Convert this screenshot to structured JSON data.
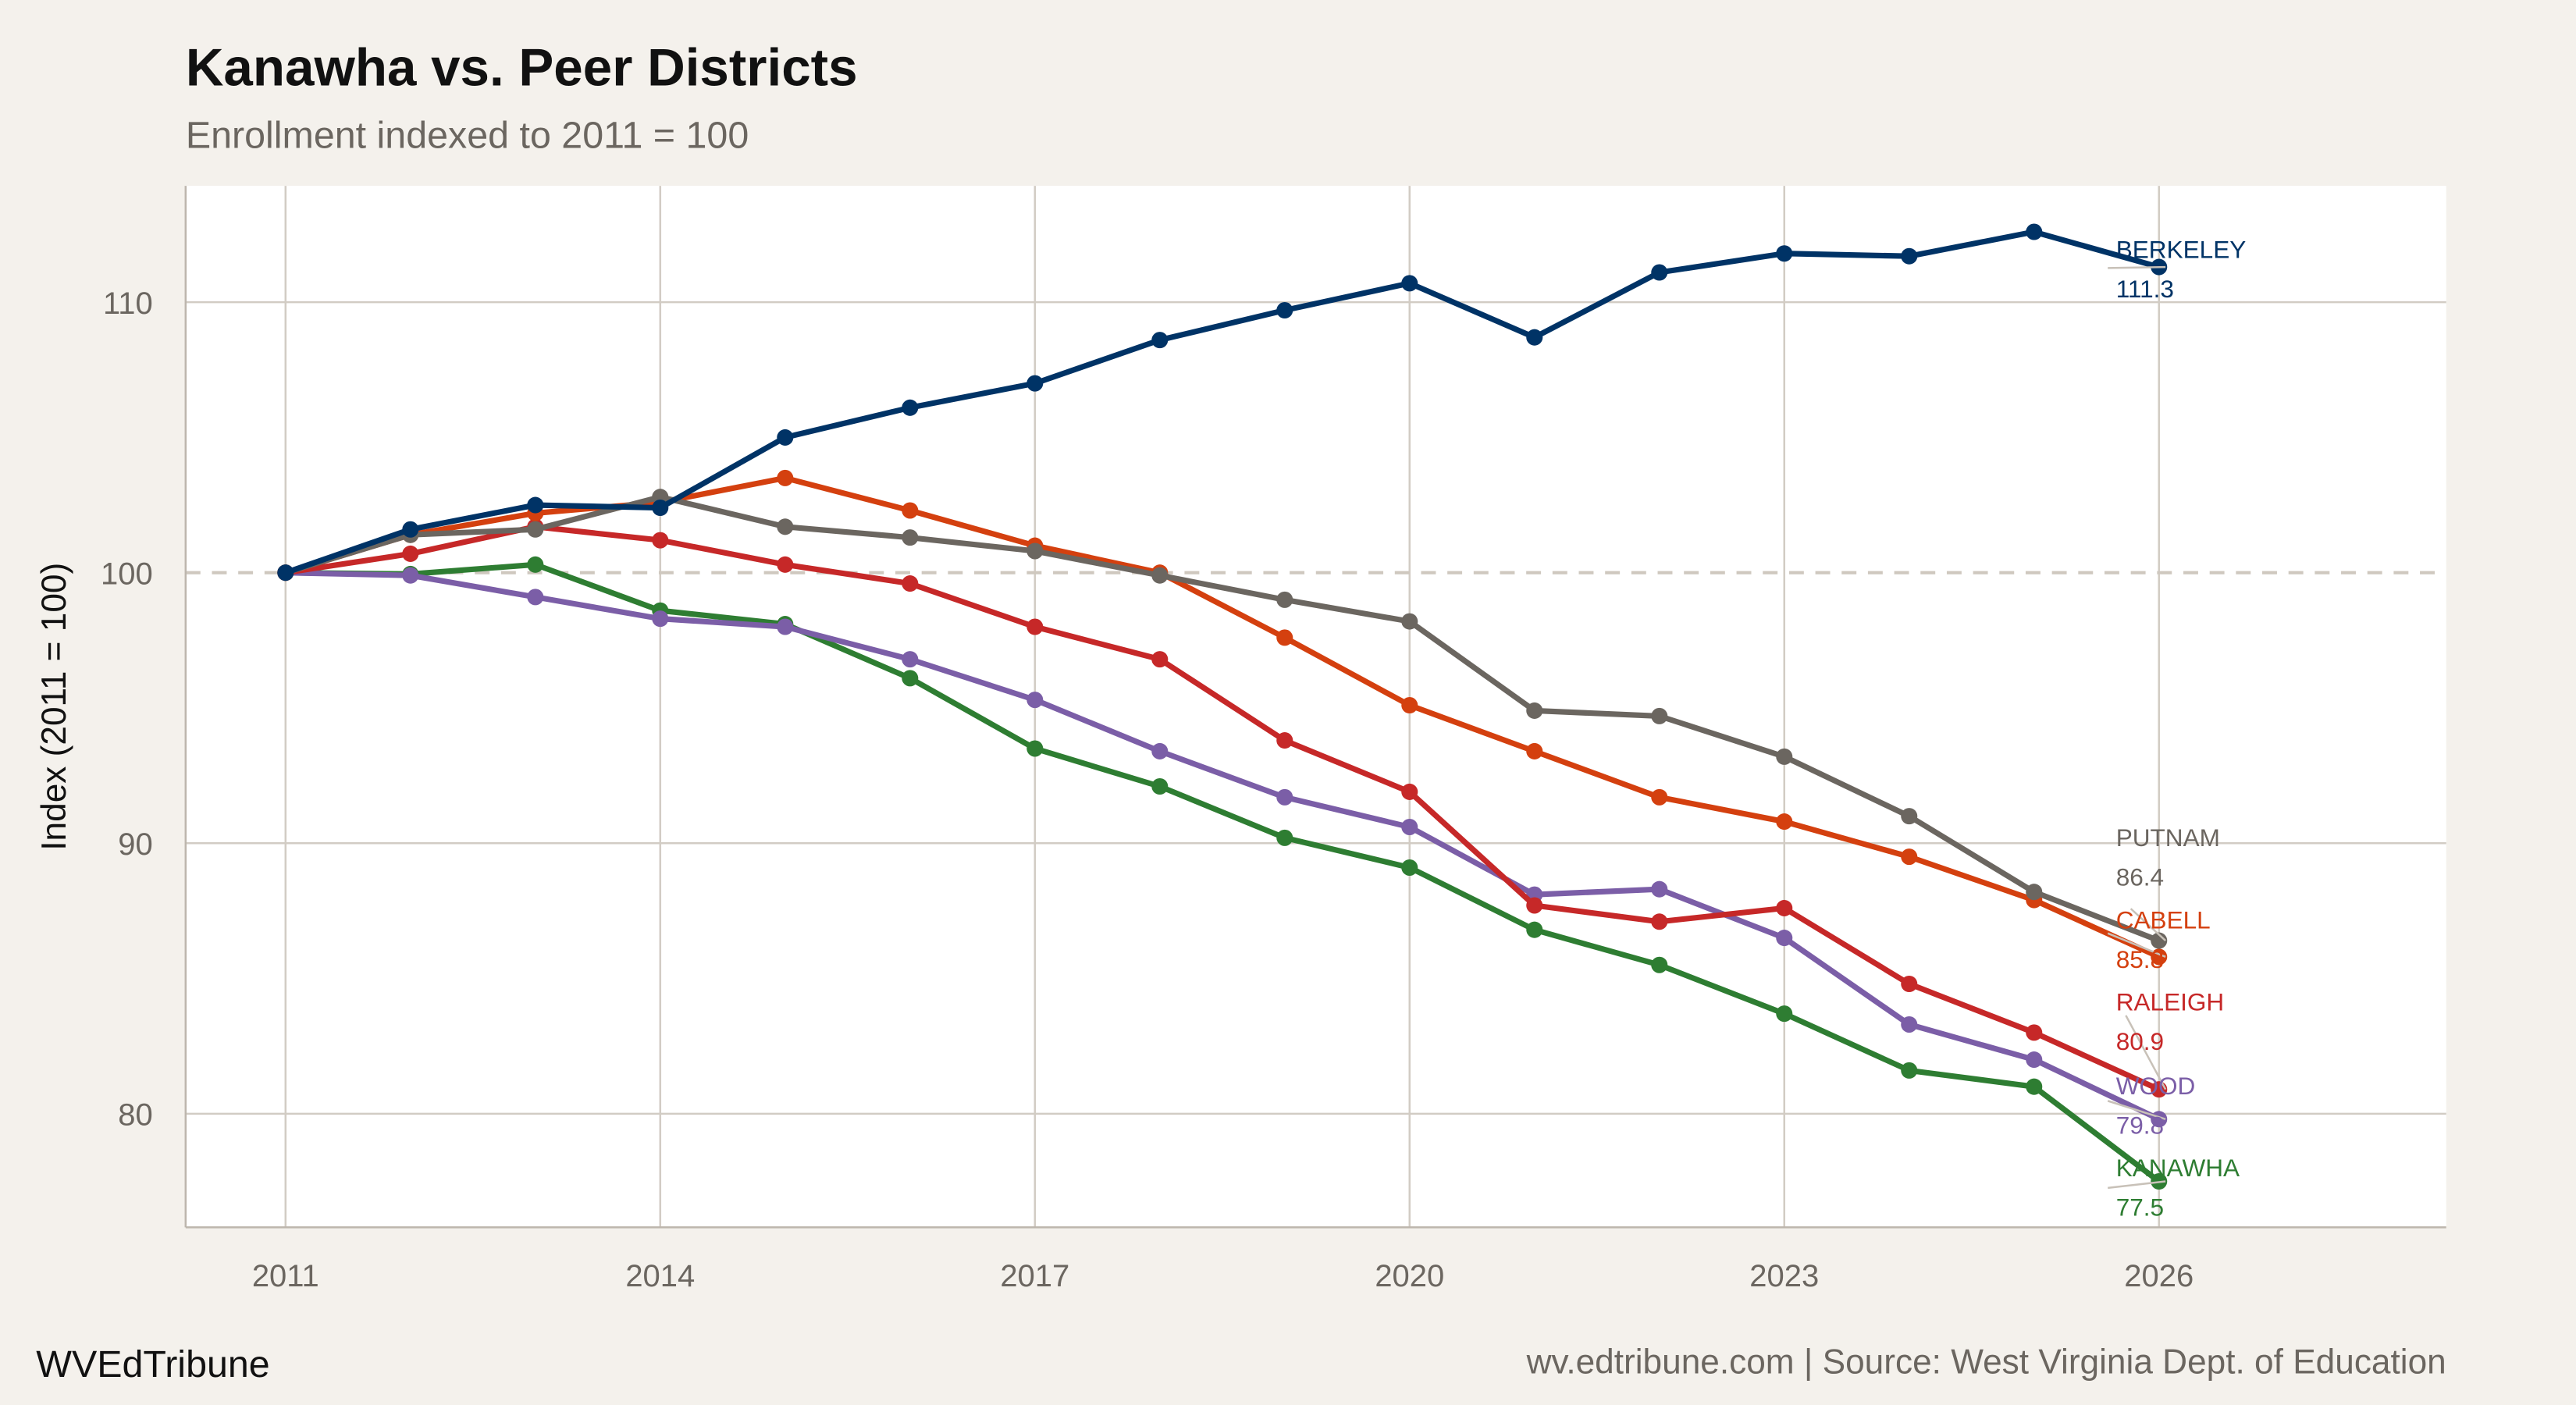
{
  "chart_data": {
    "type": "line",
    "title": "Kanawha vs. Peer Districts",
    "subtitle": "Enrollment indexed to 2011 = 100",
    "xlabel": "",
    "ylabel": "Index (2011 = 100)",
    "xlim": [
      2010.2,
      2028.3
    ],
    "ylim": [
      75.8,
      114.3
    ],
    "x_ticks": [
      "2011",
      "2014",
      "2017",
      "2020",
      "2023",
      "2026"
    ],
    "y_ticks": [
      "80",
      "90",
      "100",
      "110"
    ],
    "reference_line": 100,
    "grid": true,
    "x": [
      2011,
      2012,
      2013,
      2014,
      2015,
      2016,
      2017,
      2018,
      2019,
      2020,
      2021,
      2022,
      2023,
      2024,
      2025,
      2026
    ],
    "series": [
      {
        "name": "BERKELEY",
        "end_label": "111.3",
        "color": "#003366",
        "values": [
          100,
          101.6,
          102.5,
          102.4,
          105.0,
          106.1,
          107.0,
          108.6,
          109.7,
          110.7,
          108.7,
          111.1,
          111.8,
          111.7,
          112.6,
          111.3
        ]
      },
      {
        "name": "PUTNAM",
        "end_label": "86.4",
        "color": "#6b6660",
        "values": [
          100,
          101.4,
          101.6,
          102.8,
          101.7,
          101.3,
          100.8,
          99.9,
          99.0,
          98.2,
          94.9,
          94.7,
          93.2,
          91.0,
          88.2,
          86.4
        ]
      },
      {
        "name": "CABELL",
        "end_label": "85.8",
        "color": "#d4400f",
        "values": [
          100,
          101.4,
          102.2,
          102.6,
          103.5,
          102.3,
          101.0,
          100.0,
          97.6,
          95.1,
          93.4,
          91.7,
          90.8,
          89.5,
          87.9,
          85.8
        ]
      },
      {
        "name": "RALEIGH",
        "end_label": "80.9",
        "color": "#c62828",
        "values": [
          100,
          100.7,
          101.7,
          101.2,
          100.3,
          99.6,
          98.0,
          96.8,
          93.8,
          91.9,
          87.7,
          87.1,
          87.6,
          84.8,
          83.0,
          80.9
        ]
      },
      {
        "name": "WOOD",
        "end_label": "79.8",
        "color": "#7b5ea7",
        "values": [
          100,
          99.9,
          99.1,
          98.3,
          98.0,
          96.8,
          95.3,
          93.4,
          91.7,
          90.6,
          88.1,
          88.3,
          86.5,
          83.3,
          82.0,
          79.8
        ]
      },
      {
        "name": "KANAWHA",
        "end_label": "77.5",
        "color": "#2e7d32",
        "values": [
          100,
          99.95,
          100.3,
          98.6,
          98.1,
          96.1,
          93.5,
          92.1,
          90.2,
          89.1,
          86.8,
          85.5,
          83.7,
          81.6,
          81.0,
          77.5
        ]
      }
    ]
  },
  "footer": {
    "brand": "WVEdTribune",
    "source": "wv.edtribune.com | Source: West Virginia Dept. of Education"
  }
}
